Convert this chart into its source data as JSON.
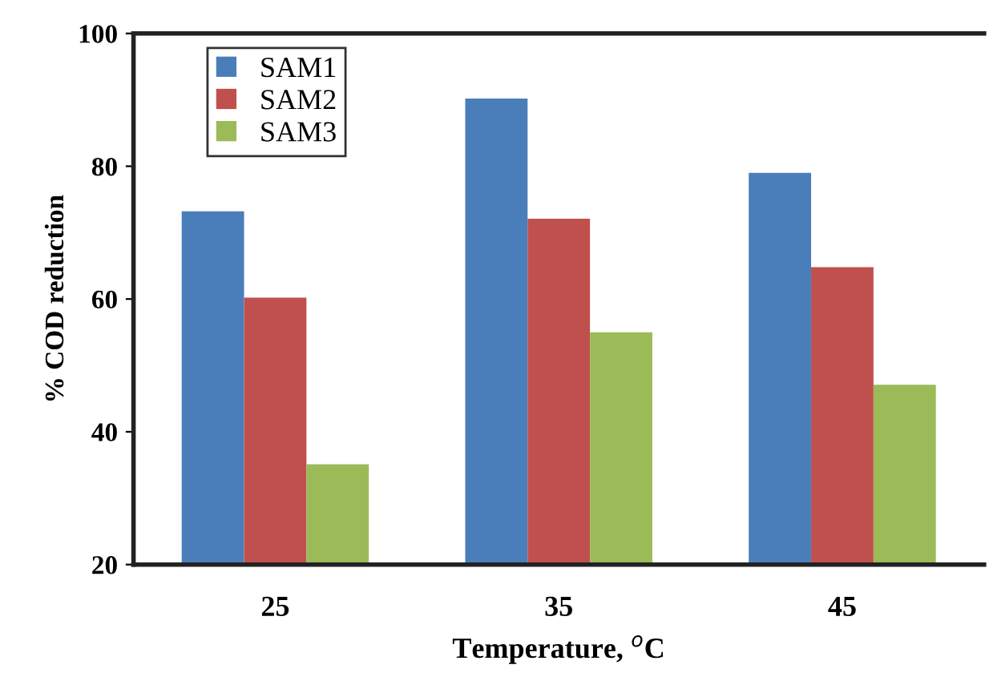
{
  "chart_data": {
    "type": "bar",
    "xlabel": "Temperature, $^{o}$C",
    "ylabel": "% COD reduction",
    "categories": [
      "25",
      "35",
      "45"
    ],
    "series": [
      {
        "name": "SAM1",
        "color": "#4a7ebb",
        "values": [
          73.2,
          90.2,
          79.0
        ]
      },
      {
        "name": "SAM2",
        "color": "#c0504d",
        "values": [
          60.2,
          72.1,
          64.8
        ]
      },
      {
        "name": "SAM3",
        "color": "#9bbb59",
        "values": [
          35.1,
          55.0,
          47.1
        ]
      }
    ],
    "ylim": [
      20,
      100
    ],
    "yticks": [
      20,
      40,
      60,
      80,
      100
    ],
    "grid": false,
    "legend": "top left"
  }
}
